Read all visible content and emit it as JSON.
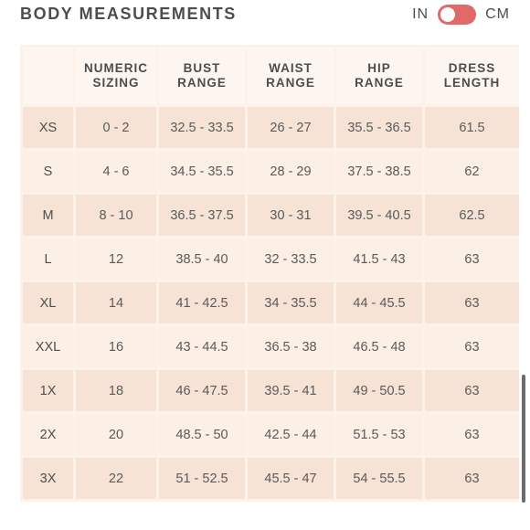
{
  "header": {
    "title": "BODY MEASUREMENTS",
    "unit_in": "IN",
    "unit_cm": "CM"
  },
  "colors": {
    "toggle": "#e06a6a",
    "row_dark": "#f7e3d6",
    "row_light": "#fcefe6"
  },
  "table": {
    "columns": [
      {
        "line1": "",
        "line2": ""
      },
      {
        "line1": "NUMERIC",
        "line2": "SIZING"
      },
      {
        "line1": "BUST",
        "line2": "RANGE"
      },
      {
        "line1": "WAIST",
        "line2": "RANGE"
      },
      {
        "line1": "HIP",
        "line2": "RANGE"
      },
      {
        "line1": "DRESS",
        "line2": "LENGTH"
      }
    ],
    "rows": [
      [
        "XS",
        "0 - 2",
        "32.5 - 33.5",
        "26 - 27",
        "35.5 - 36.5",
        "61.5"
      ],
      [
        "S",
        "4 - 6",
        "34.5 - 35.5",
        "28 - 29",
        "37.5 - 38.5",
        "62"
      ],
      [
        "M",
        "8 - 10",
        "36.5 - 37.5",
        "30 - 31",
        "39.5 - 40.5",
        "62.5"
      ],
      [
        "L",
        "12",
        "38.5 - 40",
        "32 - 33.5",
        "41.5 - 43",
        "63"
      ],
      [
        "XL",
        "14",
        "41 - 42.5",
        "34 - 35.5",
        "44 - 45.5",
        "63"
      ],
      [
        "XXL",
        "16",
        "43 - 44.5",
        "36.5 - 38",
        "46.5 - 48",
        "63"
      ],
      [
        "1X",
        "18",
        "46 - 47.5",
        "39.5 - 41",
        "49 - 50.5",
        "63"
      ],
      [
        "2X",
        "20",
        "48.5 - 50",
        "42.5 - 44",
        "51.5 - 53",
        "63"
      ],
      [
        "3X",
        "22",
        "51 - 52.5",
        "45.5 - 47",
        "54 - 55.5",
        "63"
      ]
    ]
  }
}
